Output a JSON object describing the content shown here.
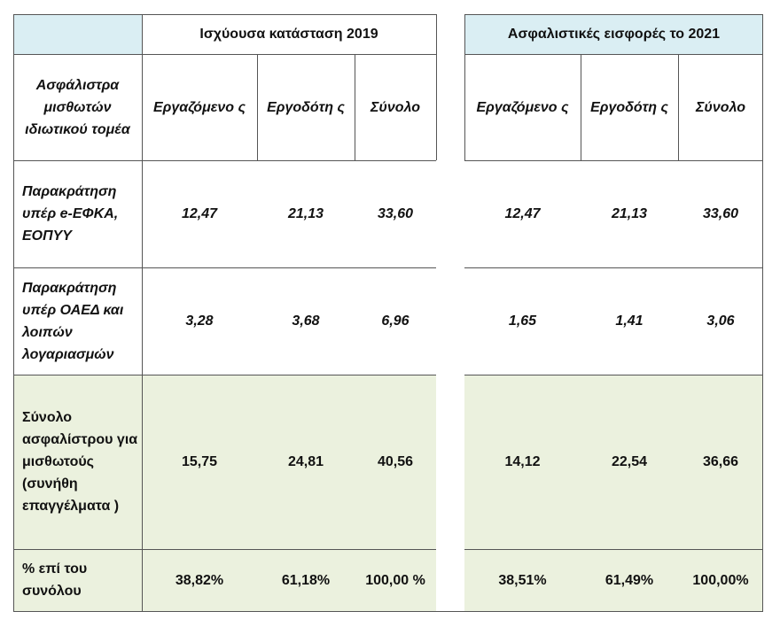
{
  "groups": [
    "Ισχύουσα κατάσταση 2019",
    "Ασφαλιστικές εισφορές το 2021"
  ],
  "row_header": "Ασφάλιστρα μισθωτών ιδιωτικού τομέα",
  "columns": [
    "Εργαζόμενο ς",
    "Εργοδότη ς",
    "Σύνολο"
  ],
  "rows": [
    {
      "label": "Παρακράτηση υπέρ e-ΕΦΚΑ, ΕΟΠΥΥ",
      "v2019": [
        "12,47",
        "21,13",
        "33,60"
      ],
      "v2021": [
        "12,47",
        "21,13",
        "33,60"
      ]
    },
    {
      "label": "Παρακράτηση υπέρ ΟΑΕΔ και λοιπών λογαριασμών",
      "v2019": [
        "3,28",
        "3,68",
        "6,96"
      ],
      "v2021": [
        "1,65",
        "1,41",
        "3,06"
      ]
    },
    {
      "label": "Σύνολο ασφαλίστρου για μισθωτούς (συνήθη επαγγέλματα )",
      "v2019": [
        "15,75",
        "24,81",
        "40,56"
      ],
      "v2021": [
        "14,12",
        "22,54",
        "36,66"
      ]
    },
    {
      "label": "% επί του συνόλου",
      "v2019": [
        "38,82%",
        "61,18%",
        "100,00 %"
      ],
      "v2021": [
        "38,51%",
        "61,49%",
        "100,00%"
      ]
    }
  ],
  "colors": {
    "header_bg": "#daeef3",
    "total_bg": "#ebf1de"
  }
}
